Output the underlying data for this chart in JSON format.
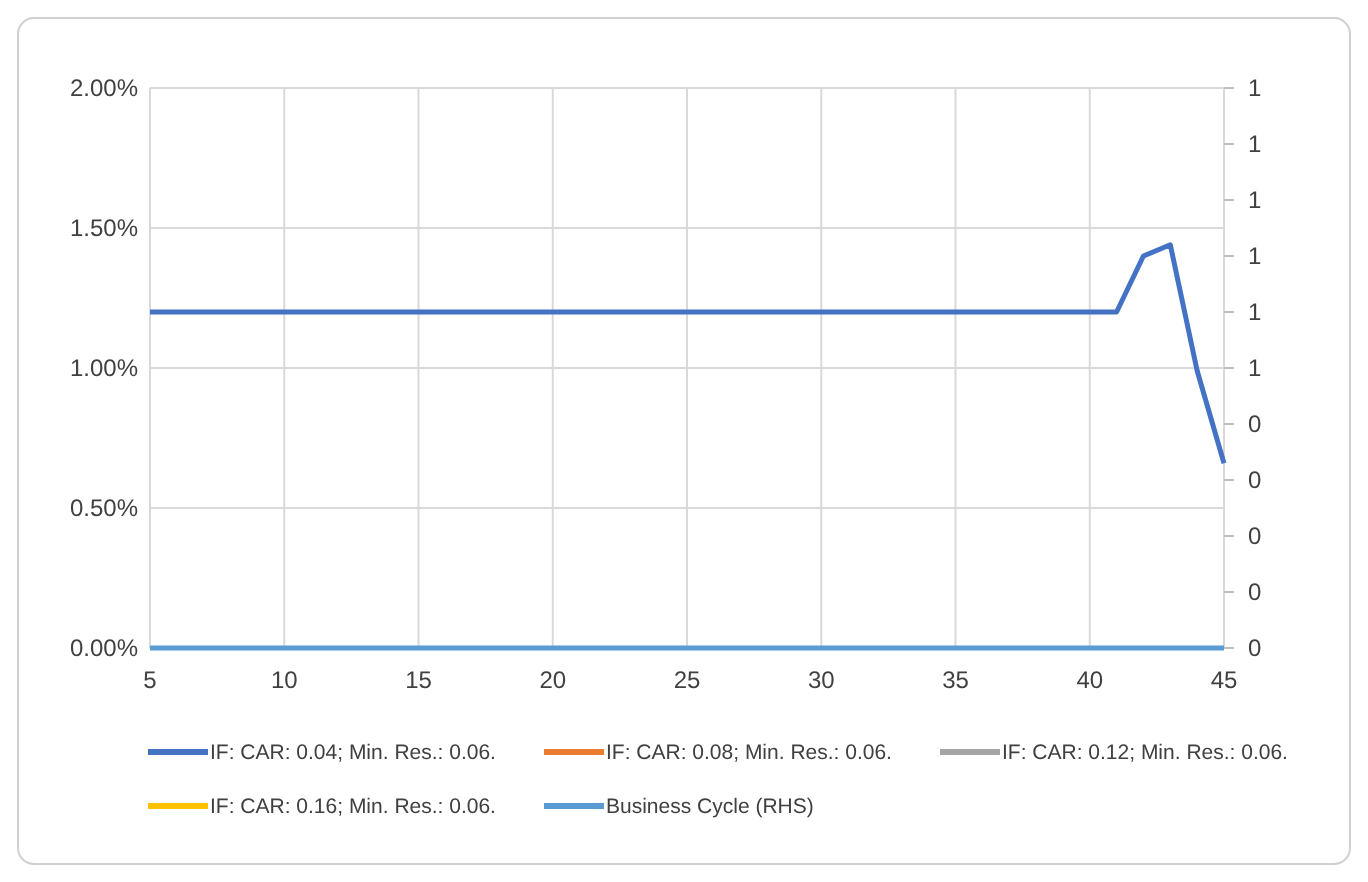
{
  "chart_data": {
    "type": "line",
    "x": [
      5,
      6,
      7,
      8,
      9,
      10,
      11,
      12,
      13,
      14,
      15,
      16,
      17,
      18,
      19,
      20,
      21,
      22,
      23,
      24,
      25,
      26,
      27,
      28,
      29,
      30,
      31,
      32,
      33,
      34,
      35,
      36,
      37,
      38,
      39,
      40,
      41,
      42,
      43,
      44,
      45
    ],
    "series": [
      {
        "name": "IF: CAR: 0.04; Min. Res.: 0.06.",
        "color": "#4472c4",
        "values": [
          1.2,
          1.2,
          1.2,
          1.2,
          1.2,
          1.2,
          1.2,
          1.2,
          1.2,
          1.2,
          1.2,
          1.2,
          1.2,
          1.2,
          1.2,
          1.2,
          1.2,
          1.2,
          1.2,
          1.2,
          1.2,
          1.2,
          1.2,
          1.2,
          1.2,
          1.2,
          1.2,
          1.2,
          1.2,
          1.2,
          1.2,
          1.2,
          1.2,
          1.2,
          1.2,
          1.2,
          1.2,
          1.4,
          1.44,
          0.99,
          0.66
        ]
      },
      {
        "name": "IF: CAR: 0.08; Min. Res.: 0.06.",
        "color": "#ed7d31",
        "values": [
          null,
          null,
          null,
          null,
          null,
          null,
          null,
          null,
          null,
          null,
          null,
          null,
          null,
          null,
          null,
          null,
          null,
          null,
          null,
          null,
          null,
          null,
          null,
          null,
          null,
          null,
          null,
          null,
          null,
          null,
          null,
          null,
          null,
          null,
          null,
          null,
          null,
          null,
          null,
          null,
          null
        ]
      },
      {
        "name": "IF: CAR: 0.12; Min. Res.: 0.06.",
        "color": "#a5a5a5",
        "values": [
          null,
          null,
          null,
          null,
          null,
          null,
          null,
          null,
          null,
          null,
          null,
          null,
          null,
          null,
          null,
          null,
          null,
          null,
          null,
          null,
          null,
          null,
          null,
          null,
          null,
          null,
          null,
          null,
          null,
          null,
          null,
          null,
          null,
          null,
          null,
          null,
          null,
          null,
          null,
          null,
          null
        ]
      },
      {
        "name": "IF: CAR: 0.16; Min. Res.: 0.06.",
        "color": "#ffc000",
        "values": [
          null,
          null,
          null,
          null,
          null,
          null,
          null,
          null,
          null,
          null,
          null,
          null,
          null,
          null,
          null,
          null,
          null,
          null,
          null,
          null,
          null,
          null,
          null,
          null,
          null,
          null,
          null,
          null,
          null,
          null,
          null,
          null,
          null,
          null,
          null,
          null,
          null,
          null,
          null,
          null,
          null
        ]
      },
      {
        "name": "Business Cycle (RHS)",
        "color": "#5b9bd5",
        "axis": "y2",
        "values": [
          0,
          0,
          0,
          0,
          0,
          0,
          0,
          0,
          0,
          0,
          0,
          0,
          0,
          0,
          0,
          0,
          0,
          0,
          0,
          0,
          0,
          0,
          0,
          0,
          0,
          0,
          0,
          0,
          0,
          0,
          0,
          0,
          0,
          0,
          0,
          0,
          0,
          0,
          0,
          0,
          0
        ]
      }
    ],
    "xlim": [
      5,
      45
    ],
    "xticks": [
      5,
      10,
      15,
      20,
      25,
      30,
      35,
      40,
      45
    ],
    "ylim": [
      0,
      2
    ],
    "yticks": [
      {
        "value": 0,
        "label": "0.00%"
      },
      {
        "value": 0.5,
        "label": "0.50%"
      },
      {
        "value": 1,
        "label": "1.00%"
      },
      {
        "value": 1.5,
        "label": "1.50%"
      },
      {
        "value": 2,
        "label": "2.00%"
      }
    ],
    "y2lim": [
      0,
      1
    ],
    "y2ticks": [
      0,
      {
        "value": 0.1,
        "label": "0"
      },
      {
        "value": 0.2,
        "label": "0"
      },
      {
        "value": 0.3,
        "label": "0"
      },
      {
        "value": 0.4,
        "label": "0"
      },
      {
        "value": 0.5,
        "label": "1"
      },
      {
        "value": 0.6,
        "label": "1"
      },
      {
        "value": 0.7,
        "label": "1"
      },
      {
        "value": 0.8,
        "label": "1"
      },
      {
        "value": 0.9,
        "label": "1"
      },
      1
    ],
    "grid": true,
    "legend": "bottom",
    "line_style": "solid",
    "marker": "none"
  }
}
